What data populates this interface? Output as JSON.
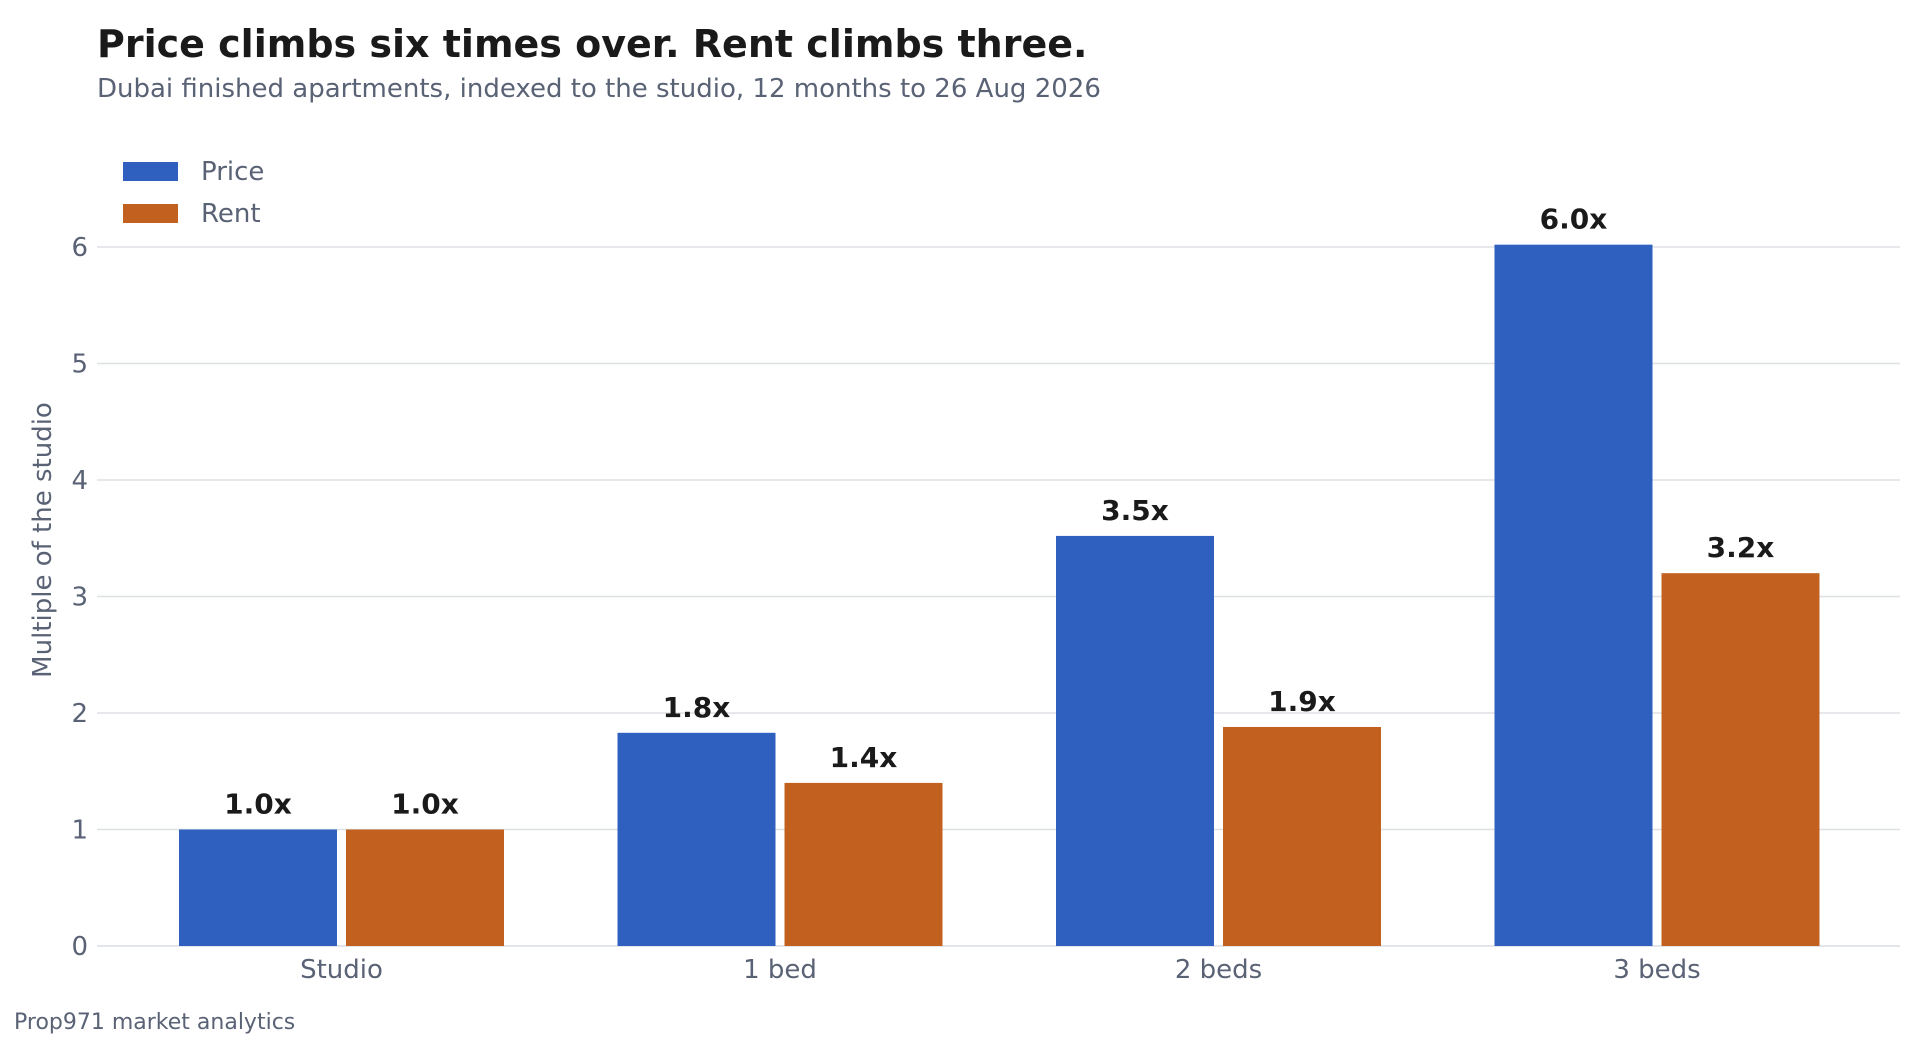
{
  "title": "Price climbs six times over. Rent climbs three.",
  "subtitle": "Dubai finished apartments, indexed to the studio, 12 months to 26 Aug 2026",
  "source": "Prop971 market analytics",
  "chart_data": {
    "type": "bar",
    "categories": [
      "Studio",
      "1 bed",
      "2 beds",
      "3 beds"
    ],
    "series": [
      {
        "name": "Price",
        "color": "#2f5fbf",
        "values": [
          1.0,
          1.83,
          3.52,
          6.02
        ],
        "labels": [
          "1.0x",
          "1.8x",
          "3.5x",
          "6.0x"
        ]
      },
      {
        "name": "Rent",
        "color": "#c2601f",
        "values": [
          1.0,
          1.4,
          1.88,
          3.2
        ],
        "labels": [
          "1.0x",
          "1.4x",
          "1.9x",
          "3.2x"
        ]
      }
    ],
    "ylabel": "Multiple of the studio",
    "xlabel": "",
    "ylim": [
      0,
      6.35
    ],
    "yticks": [
      0,
      1,
      2,
      3,
      4,
      5,
      6
    ],
    "grid": true,
    "legend": "top-left",
    "gridcolor": "#dde1e6",
    "tickcolor": "#5a6275",
    "labelcolor": "#1a1a1a"
  }
}
